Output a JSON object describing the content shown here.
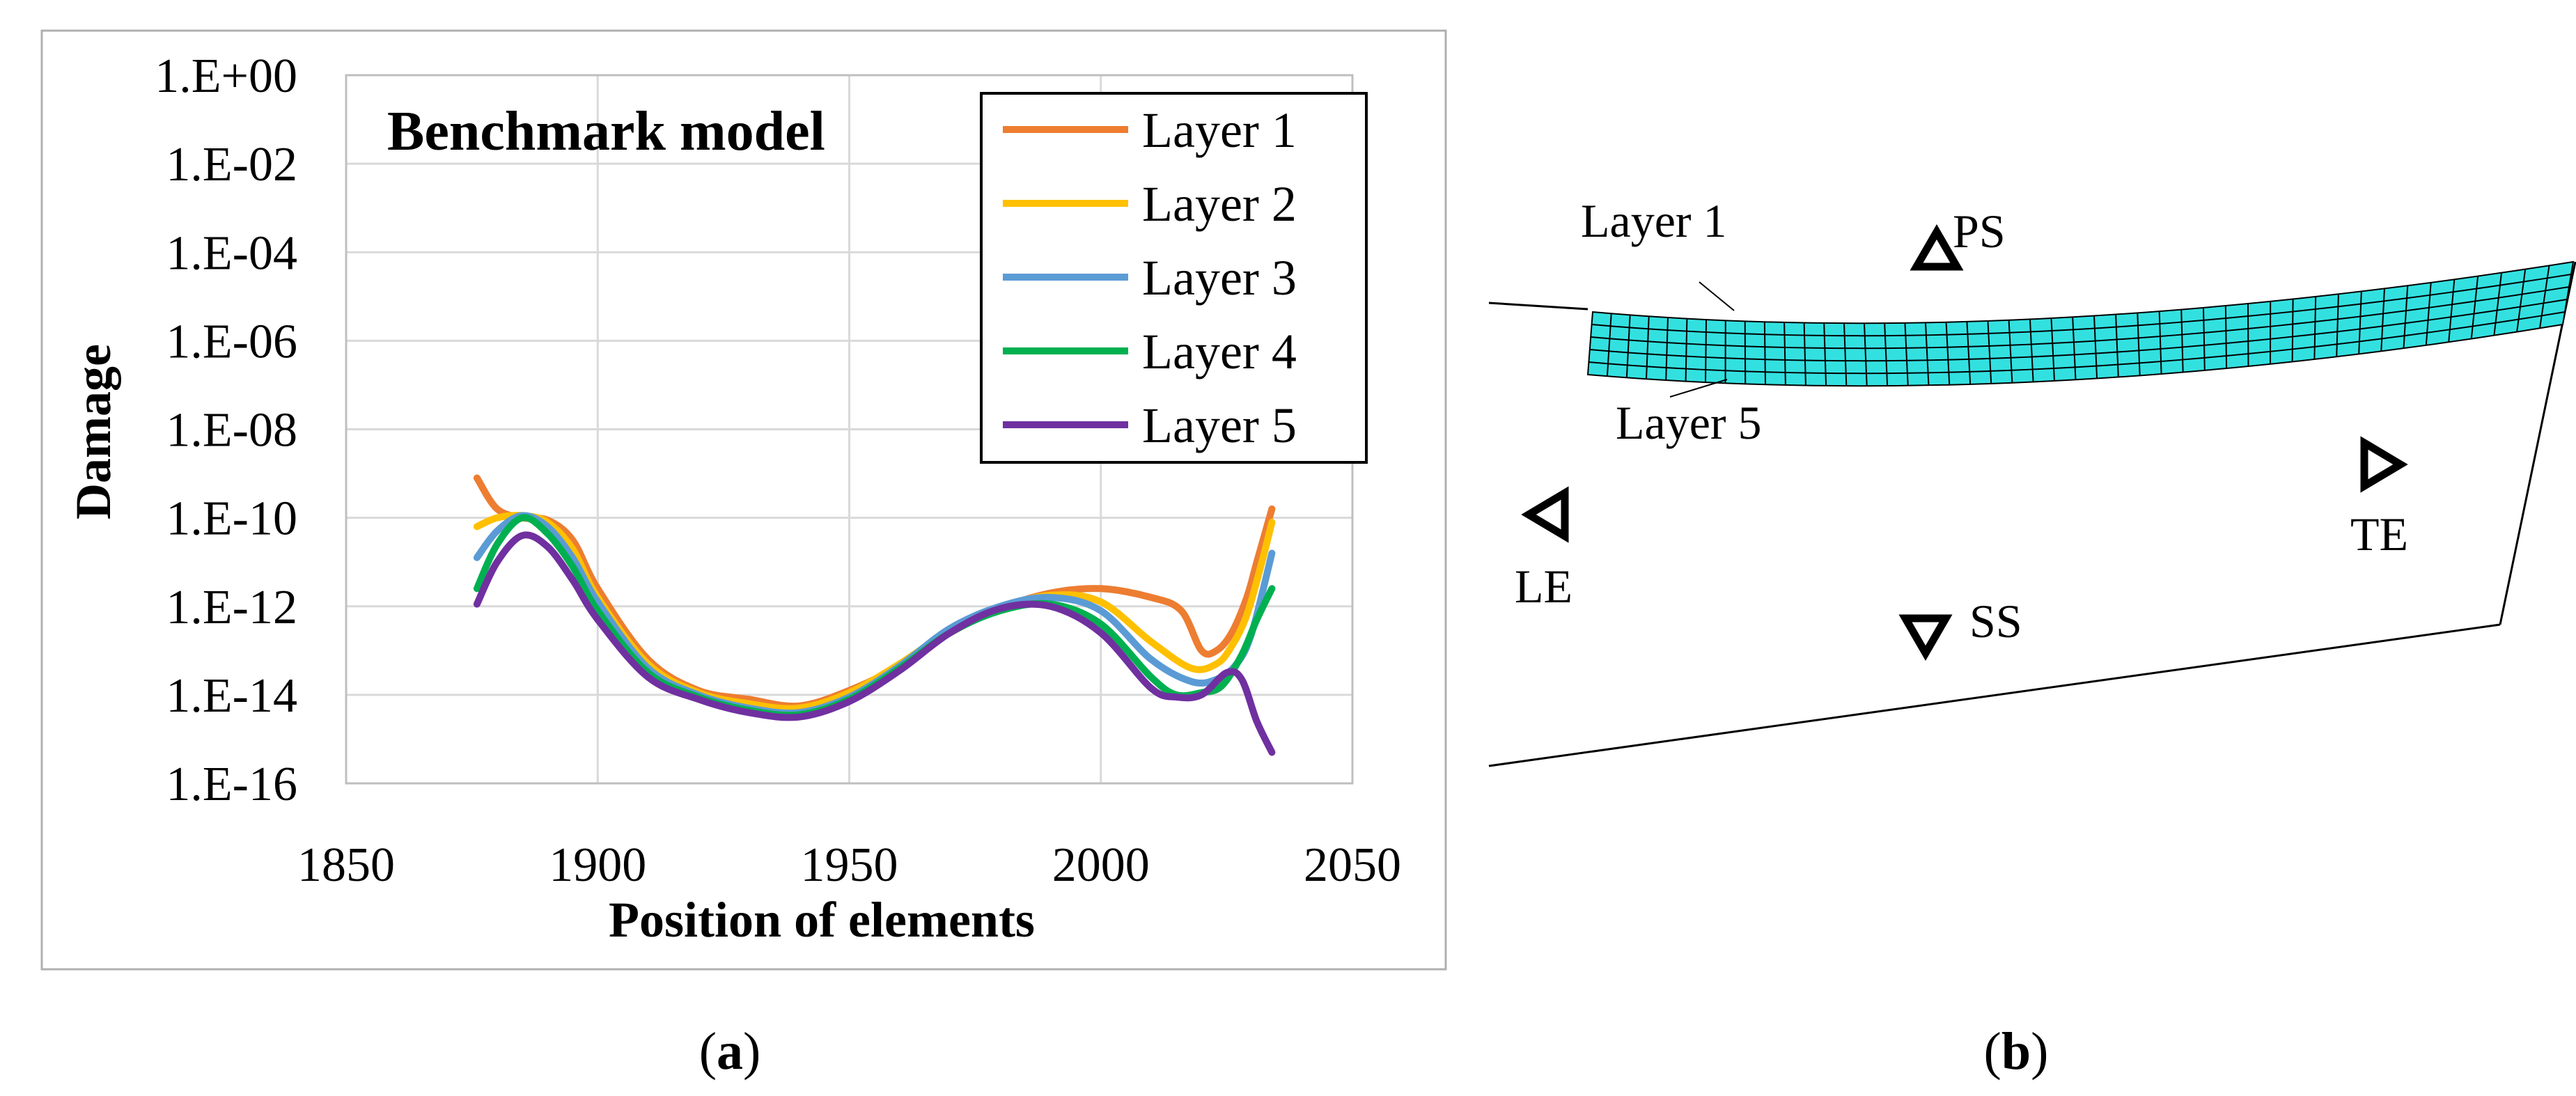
{
  "chart_data": [
    {
      "type": "line",
      "panel": "(a)",
      "title": "Benchmark model",
      "xlabel": "Position of elements",
      "ylabel": "Damage",
      "xlim": [
        1850,
        2050
      ],
      "ylim_log10": [
        -16,
        0
      ],
      "y_scale": "log",
      "grid": true,
      "legend_position": "top-right",
      "x_ticks": [
        1850,
        1900,
        1950,
        2000,
        2050
      ],
      "x_tick_labels": [
        "1850",
        "1900",
        "1950",
        "2000",
        "2050"
      ],
      "y_ticks_log10": [
        0,
        -2,
        -4,
        -6,
        -8,
        -10,
        -12,
        -14,
        -16
      ],
      "y_tick_labels": [
        "1.E+00",
        "1.E-02",
        "1.E-04",
        "1.E-06",
        "1.E-08",
        "1.E-10",
        "1.E-12",
        "1.E-14",
        "1.E-16"
      ],
      "series": [
        {
          "name": "Layer 1",
          "color": "#ED7D31",
          "x": [
            1876,
            1880,
            1885,
            1890,
            1895,
            1900,
            1910,
            1920,
            1930,
            1940,
            1950,
            1960,
            1970,
            1980,
            1990,
            2000,
            2010,
            2016,
            2020,
            2023,
            2026,
            2029,
            2031,
            2034
          ],
          "log10_values": [
            -9.1,
            -9.8,
            -10.0,
            -10.05,
            -10.5,
            -11.6,
            -13.2,
            -13.9,
            -14.1,
            -14.25,
            -13.9,
            -13.35,
            -12.6,
            -12.05,
            -11.7,
            -11.6,
            -11.8,
            -12.1,
            -13.0,
            -13.0,
            -12.6,
            -11.8,
            -11.0,
            -9.8
          ]
        },
        {
          "name": "Layer 2",
          "color": "#FFC000",
          "x": [
            1876,
            1880,
            1885,
            1890,
            1895,
            1900,
            1910,
            1920,
            1930,
            1940,
            1950,
            1960,
            1970,
            1980,
            1990,
            2000,
            2010,
            2018,
            2023,
            2026,
            2029,
            2032,
            2034
          ],
          "log10_values": [
            -10.2,
            -10.0,
            -9.95,
            -10.1,
            -10.7,
            -11.8,
            -13.3,
            -13.95,
            -14.2,
            -14.3,
            -13.95,
            -13.3,
            -12.55,
            -12.05,
            -11.75,
            -11.9,
            -12.8,
            -13.4,
            -13.3,
            -12.9,
            -12.2,
            -11.0,
            -10.1
          ]
        },
        {
          "name": "Layer 3",
          "color": "#5B9BD5",
          "x": [
            1876,
            1880,
            1885,
            1890,
            1895,
            1900,
            1910,
            1920,
            1930,
            1940,
            1950,
            1960,
            1970,
            1980,
            1990,
            2000,
            2010,
            2018,
            2023,
            2027,
            2030,
            2034
          ],
          "log10_values": [
            -10.9,
            -10.3,
            -9.95,
            -10.2,
            -10.9,
            -11.9,
            -13.4,
            -14.0,
            -14.3,
            -14.4,
            -14.05,
            -13.35,
            -12.5,
            -12.0,
            -11.8,
            -12.1,
            -13.2,
            -13.7,
            -13.65,
            -13.3,
            -12.6,
            -10.8
          ]
        },
        {
          "name": "Layer 4",
          "color": "#00B050",
          "x": [
            1876,
            1880,
            1885,
            1890,
            1895,
            1900,
            1910,
            1920,
            1930,
            1940,
            1950,
            1960,
            1970,
            1980,
            1990,
            2000,
            2010,
            2015,
            2020,
            2024,
            2028,
            2031,
            2034
          ],
          "log10_values": [
            -11.6,
            -10.6,
            -10.0,
            -10.35,
            -11.1,
            -12.1,
            -13.5,
            -14.05,
            -14.35,
            -14.45,
            -14.1,
            -13.4,
            -12.6,
            -12.1,
            -11.95,
            -12.4,
            -13.6,
            -14.0,
            -13.95,
            -13.8,
            -13.1,
            -12.3,
            -11.6
          ]
        },
        {
          "name": "Layer 5",
          "color": "#7030A0",
          "x": [
            1876,
            1880,
            1885,
            1890,
            1895,
            1900,
            1910,
            1920,
            1930,
            1940,
            1950,
            1960,
            1970,
            1980,
            1990,
            2000,
            2010,
            2015,
            2020,
            2025,
            2028,
            2031,
            2034
          ],
          "log10_values": [
            -11.95,
            -11.0,
            -10.4,
            -10.65,
            -11.4,
            -12.3,
            -13.6,
            -14.1,
            -14.4,
            -14.5,
            -14.15,
            -13.45,
            -12.6,
            -12.05,
            -12.0,
            -12.6,
            -13.85,
            -14.05,
            -14.0,
            -13.5,
            -13.65,
            -14.6,
            -15.3
          ]
        }
      ]
    }
  ],
  "diagram": {
    "panel": "(b)",
    "labels": {
      "layer1": "Layer 1",
      "layer5": "Layer 5",
      "ps": "PS",
      "ss": "SS",
      "le": "LE",
      "te": "TE"
    },
    "mesh_color": "#33E0E0"
  },
  "captions": {
    "a_prefix": "(",
    "a_letter": "a",
    "a_suffix": ")",
    "b_prefix": "(",
    "b_letter": "b",
    "b_suffix": ")"
  }
}
